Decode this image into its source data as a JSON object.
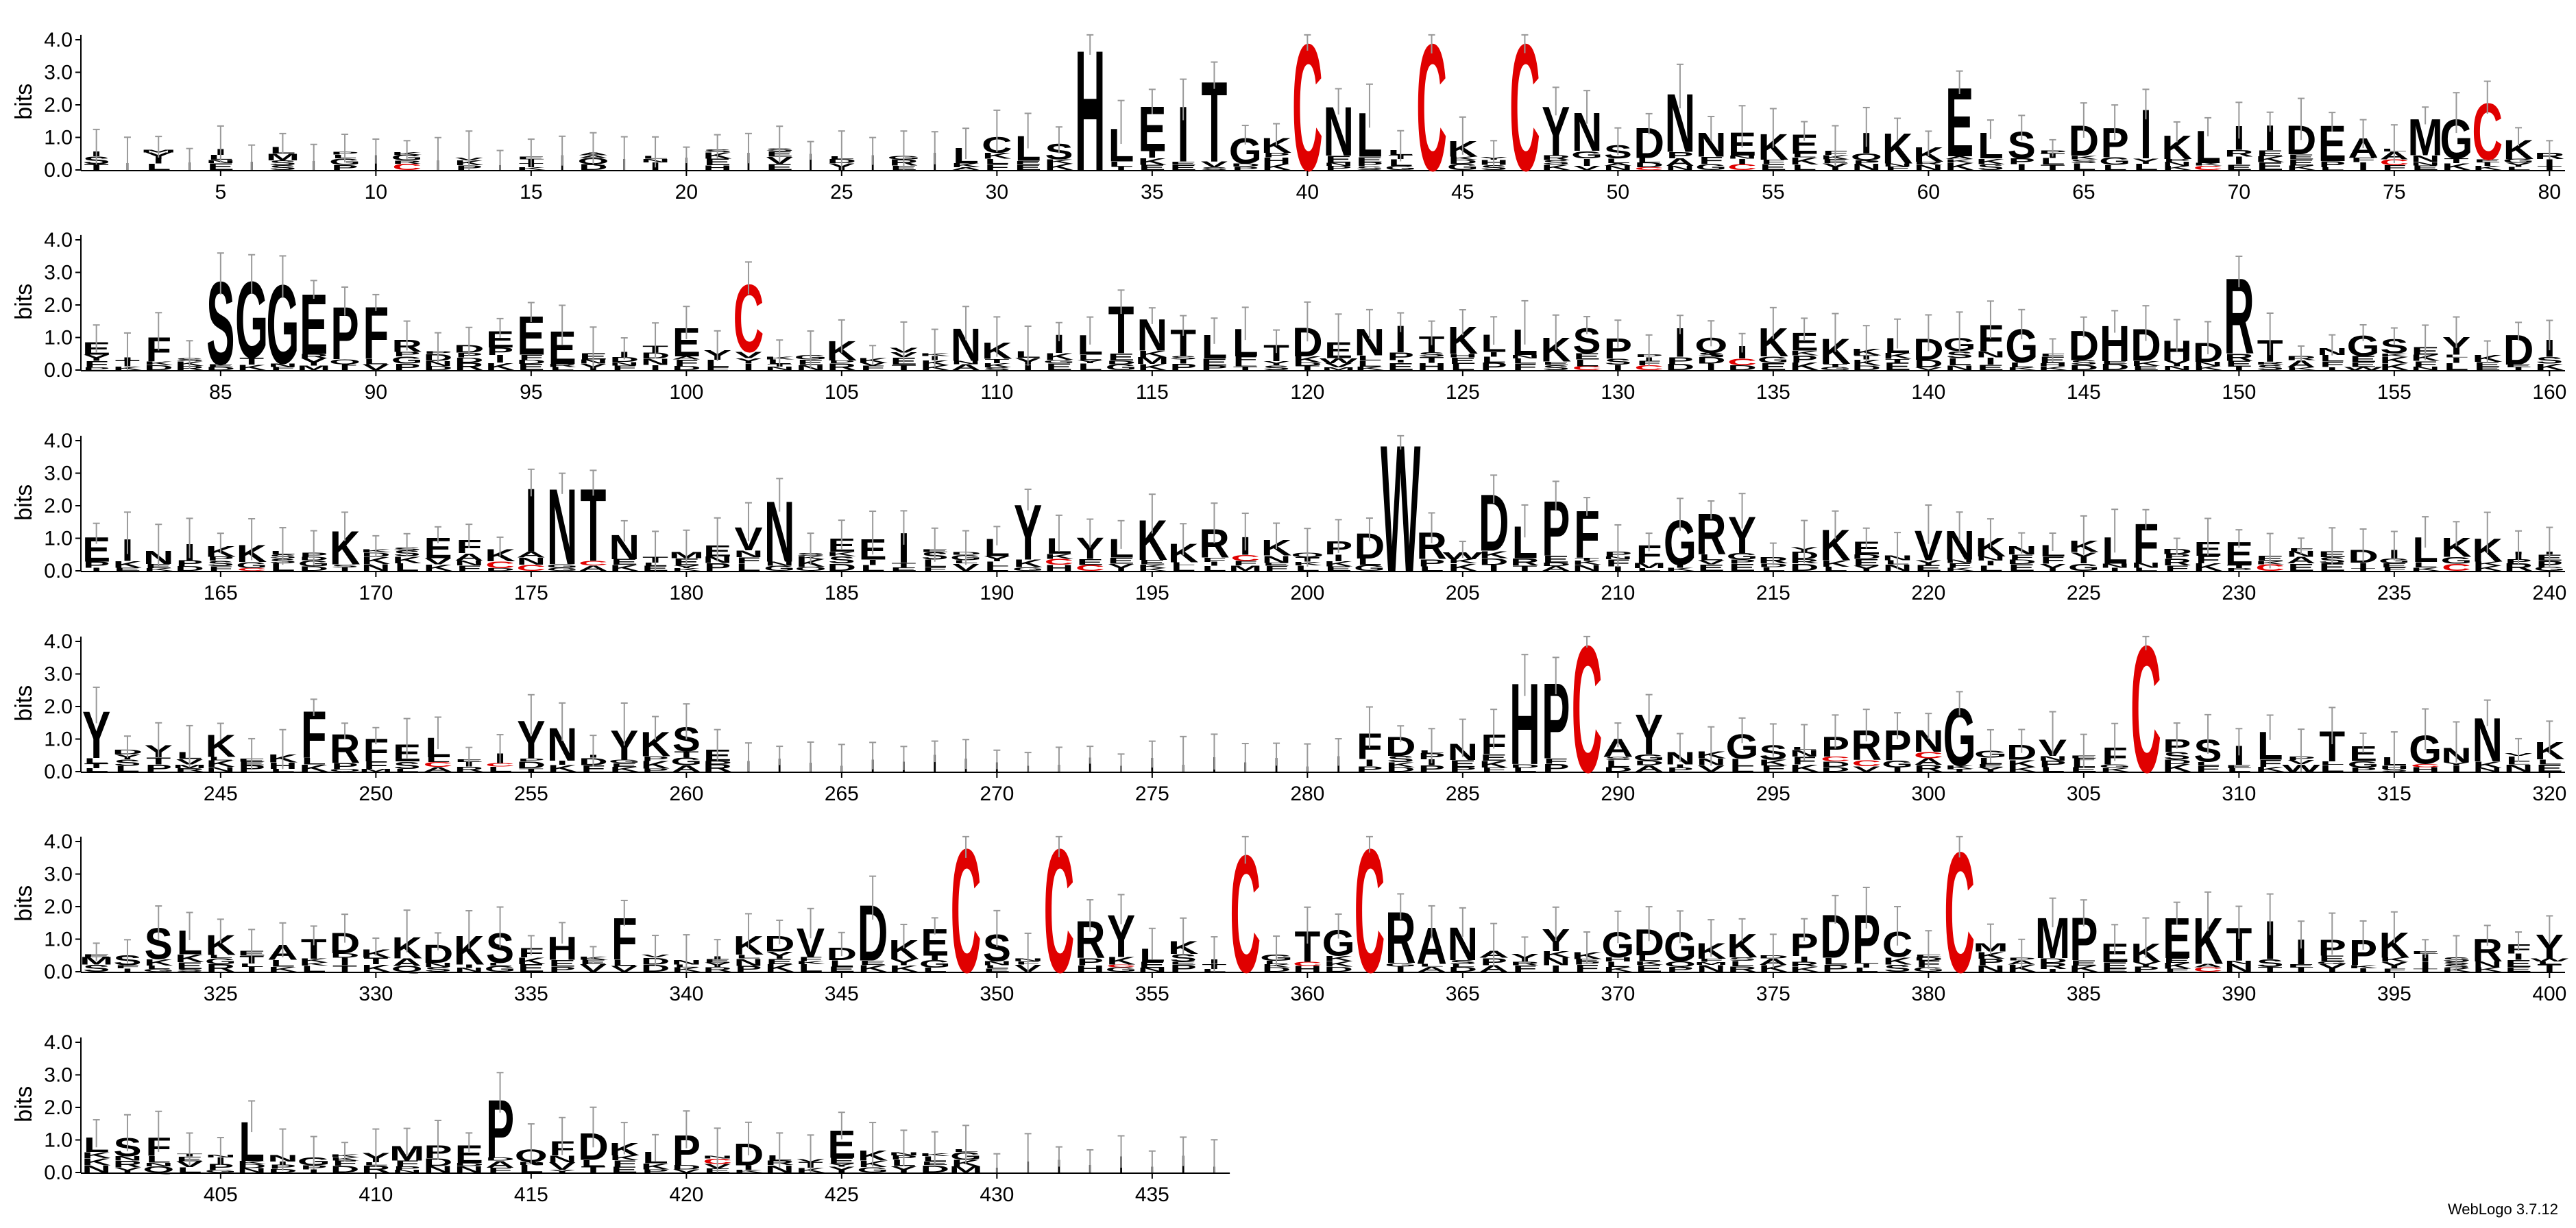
{
  "chart_data": {
    "type": "sequence-logo",
    "ylabel": "bits",
    "ylim": [
      0,
      4.3
    ],
    "yticks": [
      "0.0",
      "1.0",
      "2.0",
      "3.0",
      "4.0"
    ],
    "positions_per_row": 80,
    "total_positions": 437,
    "xtick_step": 5,
    "highlight_color": "#e00000",
    "default_color": "#000000",
    "error_bar_color": "#999999",
    "residues": "ILMKIFLTPLKTVPEFAPLLSLSRLLGHLCLSLHIEITGKCNLCKYCYNSDFNEKEFIKKELSPDPIKLIDEAKLMGCKREIFSGGEPFLRPDEFEEITEYCKGKKVKNKLLTNATLLTDENITKKLKSYPIQIKEIKTSLDGFDANHDKTRNGSEYKDIEENIKKLPKKSEFKVYINTMEVNSENIEDEKLYVLKRIKQPDRAWRLDLPFKNGRYKENVNKNLKLPDEEEFEDILKKIIPDYLKEKPRFELEIFNIYKSELNDGEPKPNFIVKDDFILDEFDLNFHPCAYNKGSLPTRPNGDVEFCPSILPTELGNFVKESSLKEATDKKDKSFHKFVNIKDVDIKECSNCRYLKICGTGGRANAYYKGDGKKDPLACELMPLFEKEITPILPKESRFYLSLTNKNGKYMPEFQFDKLPNDLVEKNKLKLHQRSEW",
    "tall_positions": [
      [
        33,
        "H",
        3.8
      ],
      [
        34,
        "L",
        1.3
      ],
      [
        35,
        "E",
        2.0
      ],
      [
        36,
        "I",
        2.0
      ],
      [
        37,
        "T",
        2.8
      ],
      [
        38,
        "G",
        1.0
      ],
      [
        39,
        "K",
        1.0
      ],
      [
        40,
        "C",
        4.0
      ],
      [
        41,
        "N",
        2.0
      ],
      [
        42,
        "L",
        1.8
      ],
      [
        44,
        "C",
        4.0
      ],
      [
        47,
        "C",
        4.0
      ],
      [
        48,
        "Y",
        2.0
      ],
      [
        49,
        "N",
        1.8
      ],
      [
        52,
        "N",
        2.4
      ],
      [
        61,
        "E",
        2.6
      ],
      [
        67,
        "I",
        1.9
      ],
      [
        71,
        "I",
        1.4
      ],
      [
        72,
        "D",
        1.4
      ],
      [
        73,
        "E",
        1.4
      ],
      [
        74,
        "A",
        1.0
      ],
      [
        76,
        "M",
        1.6
      ],
      [
        77,
        "G",
        1.6
      ],
      [
        78,
        "C",
        2.1
      ],
      [
        85,
        "S",
        2.8
      ],
      [
        86,
        "G",
        2.8
      ],
      [
        87,
        "G",
        2.7
      ],
      [
        88,
        "E",
        2.4
      ],
      [
        89,
        "P",
        2.0
      ],
      [
        90,
        "F",
        2.0
      ],
      [
        95,
        "E",
        1.7
      ],
      [
        102,
        "C",
        2.7
      ],
      [
        112,
        "I",
        1.1
      ],
      [
        113,
        "L",
        1.1
      ],
      [
        114,
        "T",
        2.0
      ],
      [
        115,
        "N",
        1.6
      ],
      [
        117,
        "L",
        1.1
      ],
      [
        118,
        "L",
        1.3
      ],
      [
        126,
        "L",
        1.1
      ],
      [
        130,
        "P",
        1.0
      ],
      [
        137,
        "K",
        1.0
      ],
      [
        139,
        "L",
        1.0
      ],
      [
        140,
        "D",
        1.0
      ],
      [
        141,
        "G",
        1.0
      ],
      [
        142,
        "F",
        1.4
      ],
      [
        146,
        "H",
        1.4
      ],
      [
        147,
        "D",
        1.3
      ],
      [
        150,
        "R",
        2.9
      ],
      [
        162,
        "I",
        1.0
      ],
      [
        175,
        "I",
        2.6
      ],
      [
        176,
        "N",
        2.6
      ],
      [
        177,
        "T",
        2.6
      ],
      [
        183,
        "N",
        2.2
      ],
      [
        186,
        "E",
        1.0
      ],
      [
        190,
        "L",
        1.0
      ],
      [
        191,
        "Y",
        2.1
      ],
      [
        194,
        "L",
        1.0
      ],
      [
        195,
        "K",
        1.6
      ],
      [
        203,
        "W",
        4.0
      ],
      [
        204,
        "R",
        1.2
      ],
      [
        206,
        "D",
        2.4
      ],
      [
        207,
        "L",
        1.4
      ],
      [
        208,
        "P",
        2.2
      ],
      [
        209,
        "F",
        1.9
      ],
      [
        212,
        "G",
        1.6
      ],
      [
        213,
        "R",
        1.8
      ],
      [
        214,
        "Y",
        1.7
      ],
      [
        227,
        "F",
        1.5
      ],
      [
        241,
        "Y",
        1.9
      ],
      [
        248,
        "F",
        1.9
      ],
      [
        255,
        "Y",
        1.6
      ],
      [
        282,
        "F",
        1.2
      ],
      [
        287,
        "H",
        2.8
      ],
      [
        288,
        "P",
        2.8
      ],
      [
        289,
        "C",
        4.0
      ],
      [
        291,
        "Y",
        1.8
      ],
      [
        298,
        "R",
        1.3
      ],
      [
        299,
        "P",
        1.3
      ],
      [
        300,
        "N",
        1.3
      ],
      [
        301,
        "G",
        2.0
      ],
      [
        307,
        "C",
        4.0
      ],
      [
        308,
        "P",
        1.0
      ],
      [
        309,
        "S",
        1.0
      ],
      [
        318,
        "N",
        1.7
      ],
      [
        338,
        "F",
        1.7
      ],
      [
        346,
        "D",
        2.1
      ],
      [
        349,
        "C",
        3.9
      ],
      [
        352,
        "C",
        3.9
      ],
      [
        353,
        "R",
        1.6
      ],
      [
        354,
        "Y",
        1.8
      ],
      [
        358,
        "C",
        3.7
      ],
      [
        361,
        "G",
        1.3
      ],
      [
        362,
        "C",
        3.9
      ],
      [
        363,
        "R",
        1.9
      ],
      [
        364,
        "A",
        1.4
      ],
      [
        365,
        "N",
        1.4
      ],
      [
        377,
        "D",
        1.8
      ],
      [
        378,
        "P",
        1.8
      ],
      [
        381,
        "C",
        3.8
      ],
      [
        384,
        "M",
        1.7
      ],
      [
        385,
        "P",
        1.7
      ],
      [
        388,
        "E",
        1.7
      ],
      [
        389,
        "K",
        1.7
      ],
      [
        391,
        "I",
        1.6
      ],
      [
        393,
        "P",
        1.0
      ],
      [
        403,
        "F",
        1.1
      ],
      [
        406,
        "L",
        1.6
      ],
      [
        414,
        "P",
        2.3
      ]
    ],
    "xtick_labels": [
      "5",
      "10",
      "15",
      "20",
      "25",
      "30",
      "35",
      "40",
      "45",
      "50",
      "55",
      "60",
      "65",
      "70",
      "75",
      "80",
      "85",
      "90",
      "95",
      "100",
      "105",
      "110",
      "115",
      "120",
      "125",
      "130",
      "135",
      "140",
      "145",
      "150",
      "155",
      "160",
      "165",
      "170",
      "175",
      "180",
      "185",
      "190",
      "195",
      "200",
      "205",
      "210",
      "215",
      "220",
      "225",
      "230",
      "235",
      "240",
      "245",
      "250",
      "255",
      "260",
      "265",
      "270",
      "275",
      "280",
      "285",
      "290",
      "295",
      "300",
      "305",
      "310",
      "315",
      "320",
      "325",
      "330",
      "335",
      "340",
      "345",
      "350",
      "355",
      "360",
      "365",
      "370",
      "375",
      "380",
      "385",
      "390",
      "395",
      "400",
      "405",
      "410",
      "415",
      "420",
      "425",
      "430",
      "435"
    ]
  },
  "footer": {
    "credit": "WebLogo 3.7.12"
  }
}
